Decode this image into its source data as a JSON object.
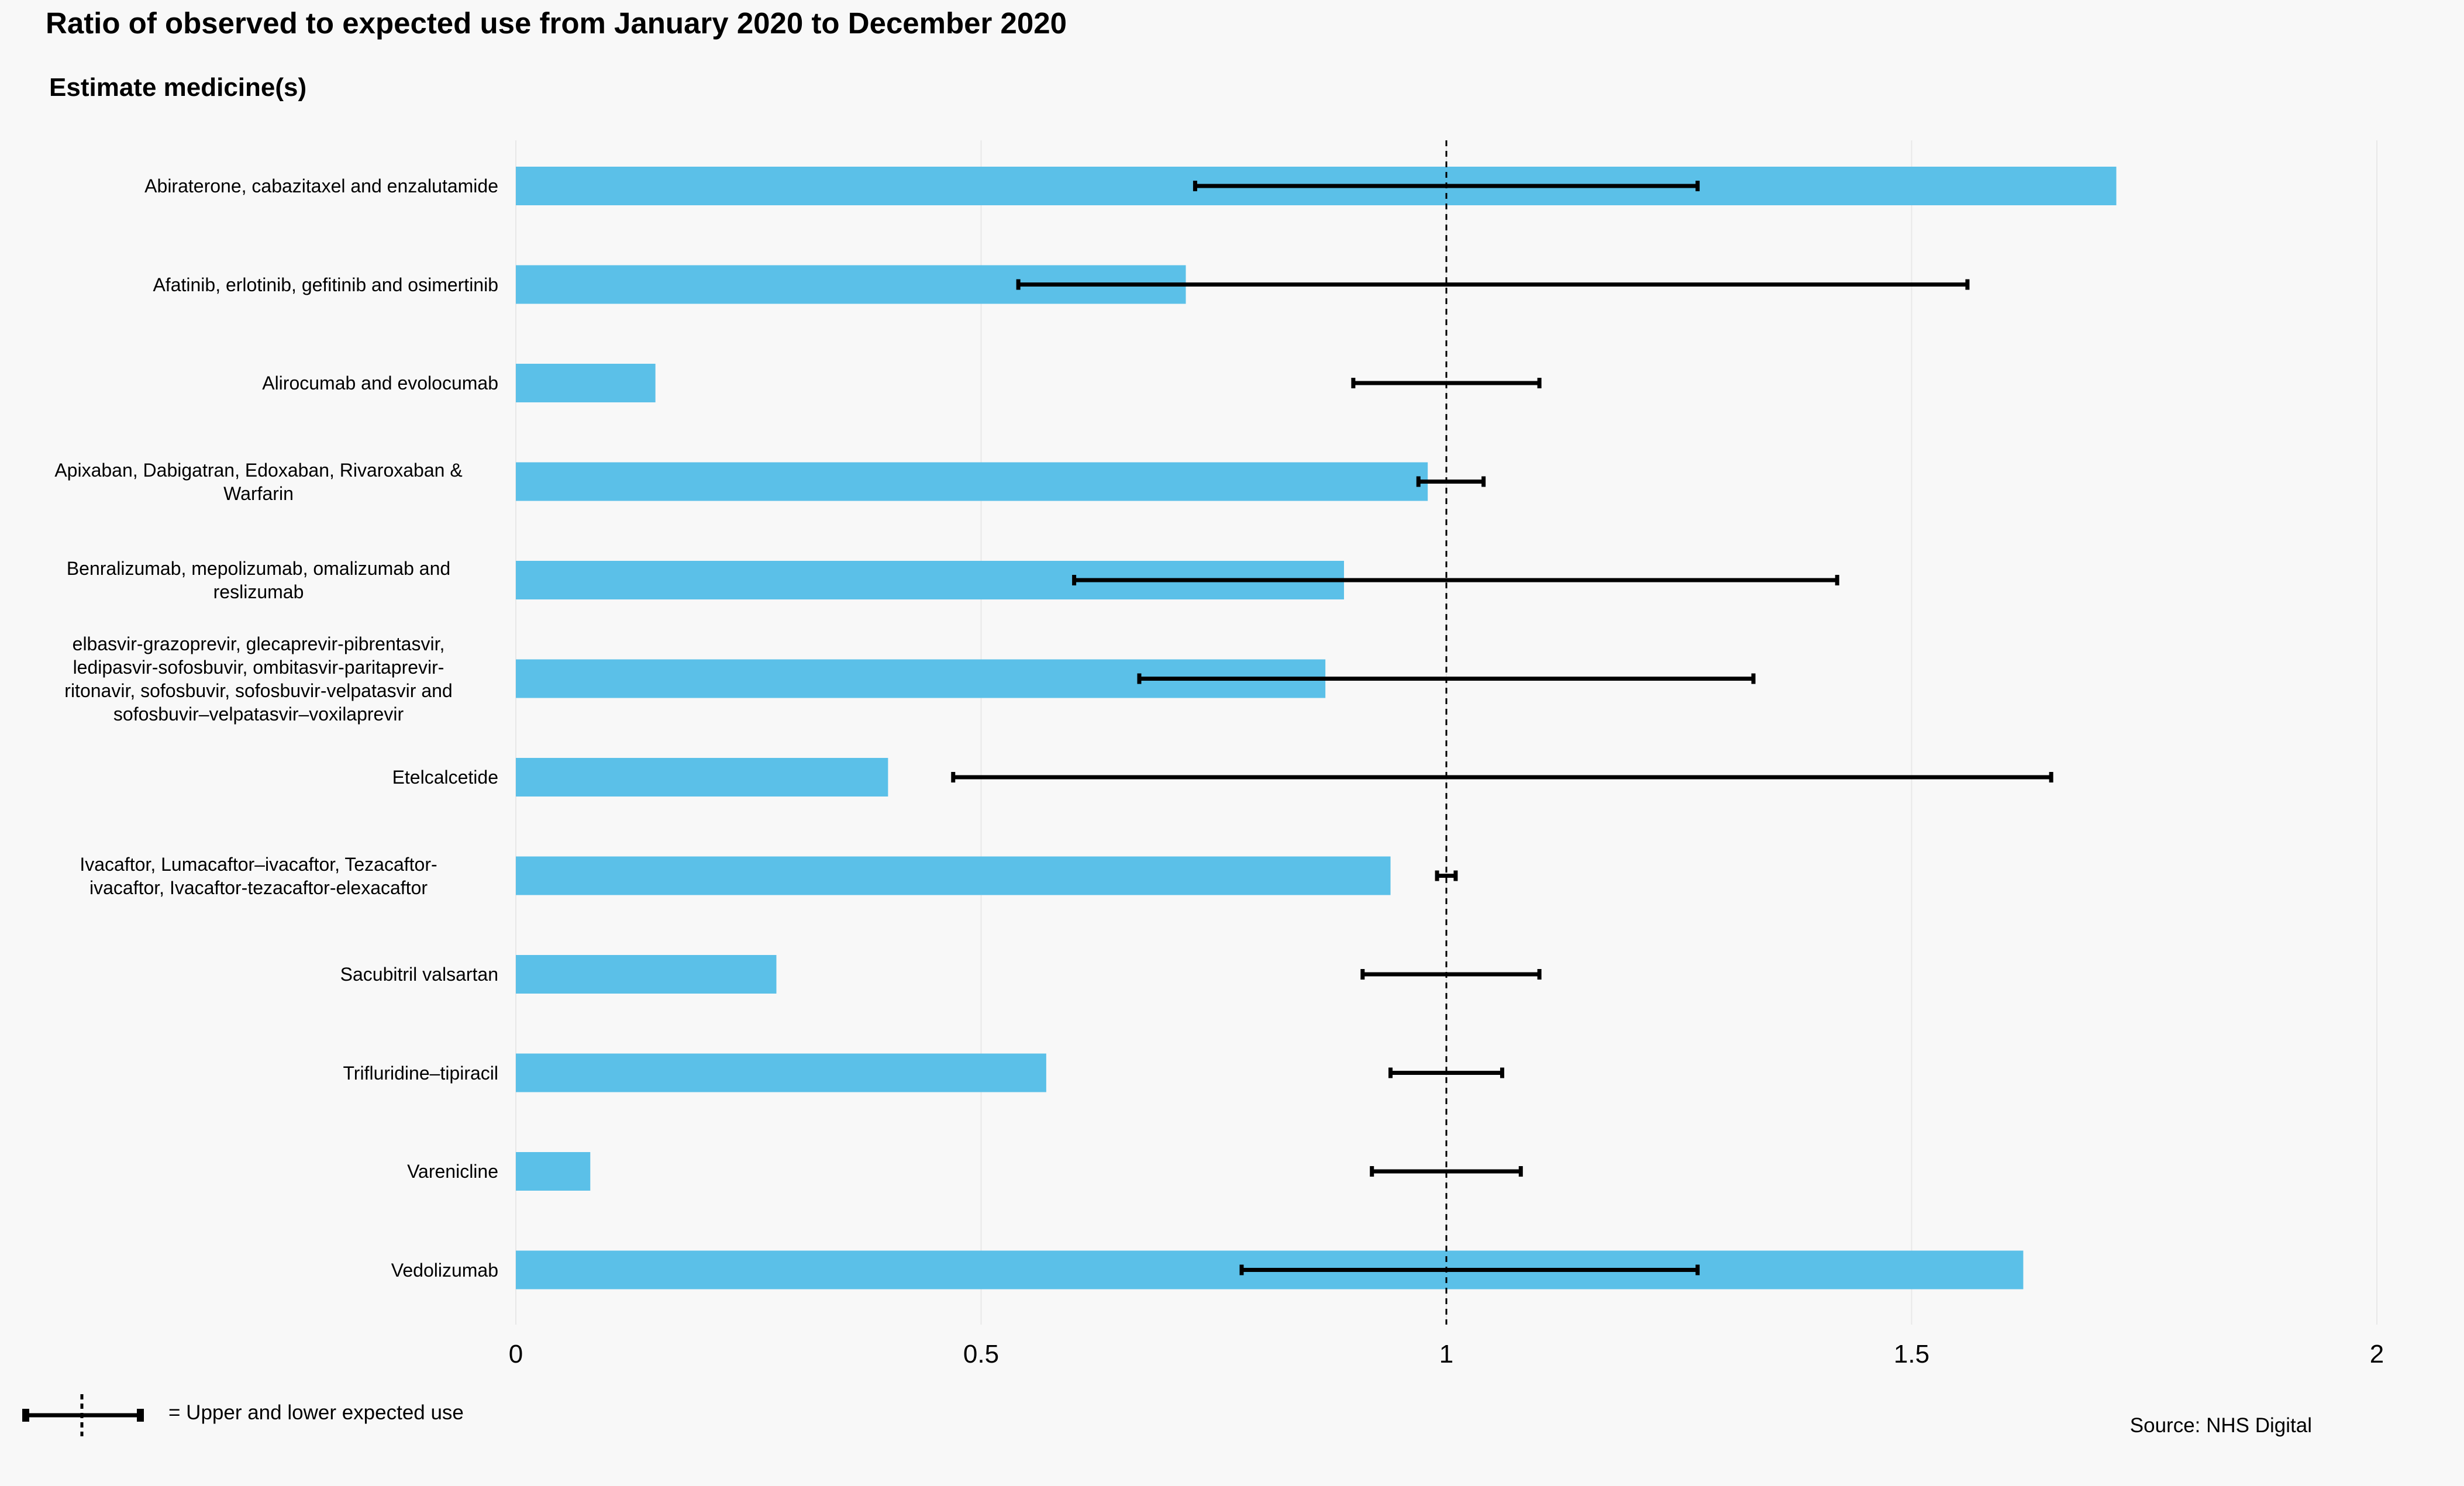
{
  "title": "Ratio of observed to expected use from January 2020 to December 2020",
  "subtitle": "Estimate medicine(s)",
  "source": "Source: NHS Digital",
  "legend": {
    "label": "= Upper and lower expected use",
    "icon": "error-bar-icon"
  },
  "colors": {
    "bar": "#5bc0e8",
    "error_bar": "#000000",
    "background": "#f8f8f8",
    "gridline": "#e8e8e8"
  },
  "chart_data": {
    "type": "bar",
    "orientation": "horizontal",
    "title": "Ratio of observed to expected use from January 2020 to December 2020",
    "subtitle": "Estimate medicine(s)",
    "xlim": [
      0,
      2
    ],
    "xticks": [
      "0",
      "0.5",
      "1",
      "1.5",
      "2"
    ],
    "xtick_values": [
      0,
      0.5,
      1,
      1.5,
      2
    ],
    "reference_line": 1,
    "grid": "vertical",
    "legend_position": "bottom-left",
    "categories": [
      [
        "Abiraterone, cabazitaxel and enzalutamide"
      ],
      [
        "Afatinib, erlotinib, gefitinib and osimertinib"
      ],
      [
        "Alirocumab and evolocumab"
      ],
      [
        "Apixaban, Dabigatran, Edoxaban, Rivaroxaban &",
        "Warfarin"
      ],
      [
        "Benralizumab, mepolizumab, omalizumab and",
        "reslizumab"
      ],
      [
        "elbasvir-grazoprevir, glecaprevir-pibrentasvir,",
        "ledipasvir-sofosbuvir, ombitasvir-paritaprevir-",
        "ritonavir, sofosbuvir, sofosbuvir-velpatasvir and",
        "sofosbuvir–velpatasvir–voxilaprevir"
      ],
      [
        "Etelcalcetide"
      ],
      [
        "Ivacaftor, Lumacaftor–ivacaftor, Tezacaftor-",
        "ivacaftor, Ivacaftor-tezacaftor-elexacaftor"
      ],
      [
        "Sacubitril valsartan"
      ],
      [
        "Trifluridine–tipiracil"
      ],
      [
        "Varenicline"
      ],
      [
        "Vedolizumab"
      ]
    ],
    "values": [
      1.72,
      0.72,
      0.15,
      0.98,
      0.89,
      0.87,
      0.4,
      0.94,
      0.28,
      0.57,
      0.08,
      1.62
    ],
    "lower": [
      0.73,
      0.54,
      0.9,
      0.97,
      0.6,
      0.67,
      0.47,
      0.99,
      0.91,
      0.94,
      0.92,
      0.78
    ],
    "upper": [
      1.27,
      1.56,
      1.1,
      1.04,
      1.42,
      1.33,
      1.65,
      1.01,
      1.1,
      1.06,
      1.08,
      1.27
    ]
  }
}
